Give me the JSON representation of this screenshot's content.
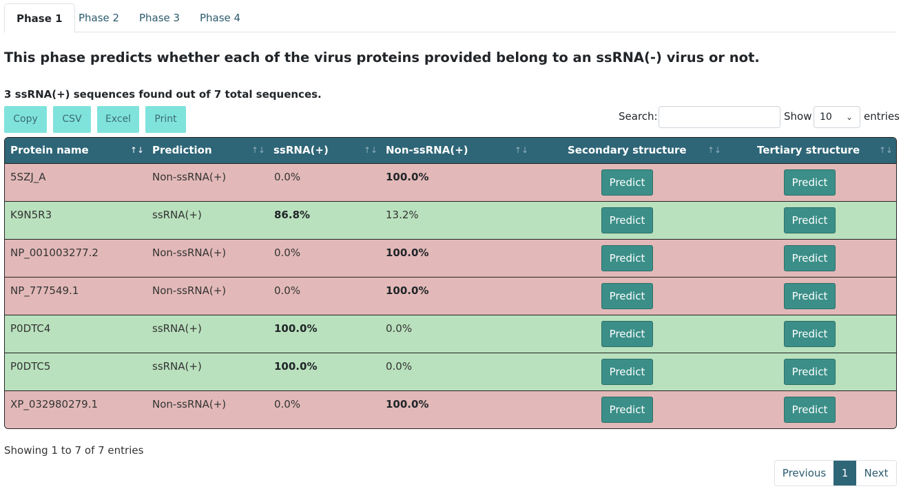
{
  "tabs": [
    "Phase 1",
    "Phase 2",
    "Phase 3",
    "Phase 4"
  ],
  "lead": "This phase predicts whether each of the virus proteins provided belong to an ssRNA(-) virus or not.",
  "summary": "3 ssRNA(+) sequences found out of 7 total sequences.",
  "export_buttons": [
    "Copy",
    "CSV",
    "Excel",
    "Print"
  ],
  "search": {
    "label": "Search:",
    "value": ""
  },
  "length": {
    "show_label": "Show",
    "value": "10",
    "entries_label": "entries"
  },
  "table": {
    "columns": [
      "Protein name",
      "Prediction",
      "ssRNA(+)",
      "Non-ssRNA(+)",
      "Secondary structure",
      "Tertiary structure"
    ],
    "predict_label": "Predict",
    "rows": [
      {
        "name": "5SZJ_A",
        "prediction": "Non-ssRNA(+)",
        "ss": "0.0%",
        "non": "100.0%",
        "status": "neg"
      },
      {
        "name": "K9N5R3",
        "prediction": "ssRNA(+)",
        "ss": "86.8%",
        "non": "13.2%",
        "status": "pos"
      },
      {
        "name": "NP_001003277.2",
        "prediction": "Non-ssRNA(+)",
        "ss": "0.0%",
        "non": "100.0%",
        "status": "neg"
      },
      {
        "name": "NP_777549.1",
        "prediction": "Non-ssRNA(+)",
        "ss": "0.0%",
        "non": "100.0%",
        "status": "neg"
      },
      {
        "name": "P0DTC4",
        "prediction": "ssRNA(+)",
        "ss": "100.0%",
        "non": "0.0%",
        "status": "pos"
      },
      {
        "name": "P0DTC5",
        "prediction": "ssRNA(+)",
        "ss": "100.0%",
        "non": "0.0%",
        "status": "pos"
      },
      {
        "name": "XP_032980279.1",
        "prediction": "Non-ssRNA(+)",
        "ss": "0.0%",
        "non": "100.0%",
        "status": "neg"
      }
    ]
  },
  "info": "Showing 1 to 7 of 7 entries",
  "pagination": {
    "previous": "Previous",
    "current": "1",
    "next": "Next"
  },
  "colors": {
    "header": "#2e6577",
    "positive_row": "#b9e1bd",
    "negative_row": "#e2b9b8",
    "predict_button": "#3b8f88",
    "export_button": "#7fe3dc"
  },
  "icons": {
    "sort": "sort-arrows-icon",
    "select": "chevron-down-icon"
  }
}
